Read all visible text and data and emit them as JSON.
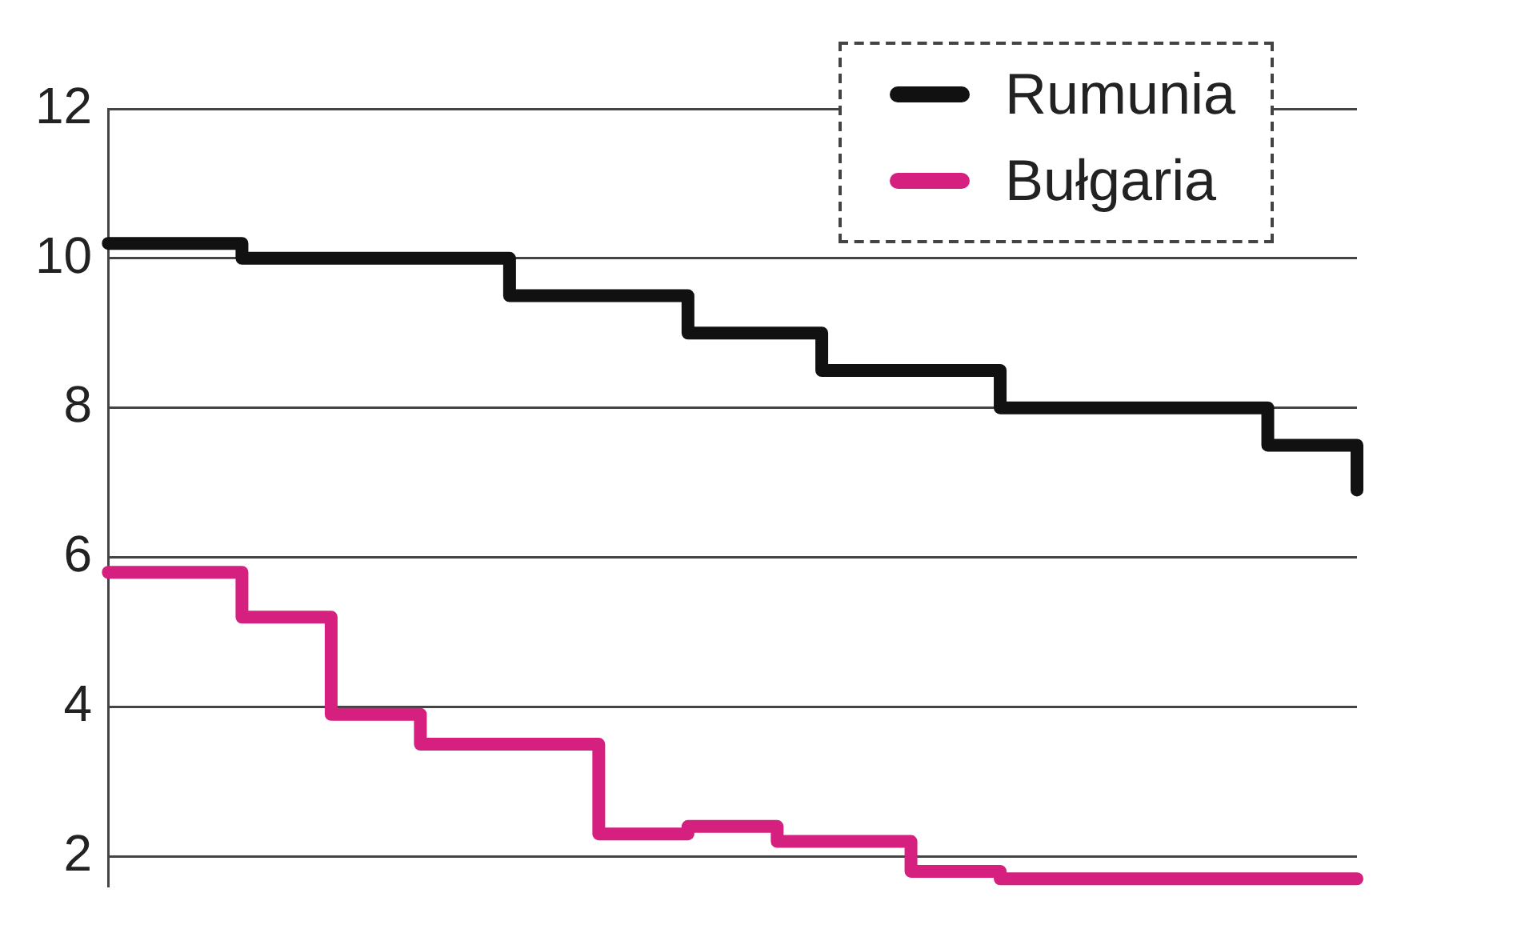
{
  "chart_data": {
    "type": "step",
    "categories": [
      null,
      null,
      null,
      null,
      null,
      null,
      null,
      null,
      null,
      null,
      null,
      null,
      null,
      null,
      null,
      null,
      null,
      null,
      null,
      null,
      null,
      null,
      null,
      null,
      null,
      null,
      null,
      null,
      null
    ],
    "series": [
      {
        "name": "Rumunia",
        "color": "#111111",
        "values": [
          10.2,
          10.2,
          10.2,
          10.0,
          10.0,
          10.0,
          10.0,
          10.0,
          10.0,
          9.5,
          9.5,
          9.5,
          9.5,
          9.0,
          9.0,
          9.0,
          8.5,
          8.5,
          8.5,
          8.5,
          8.0,
          8.0,
          8.0,
          8.0,
          8.0,
          8.0,
          7.5,
          7.5,
          6.9
        ]
      },
      {
        "name": "Bułgaria",
        "color": "#d6207f",
        "values": [
          5.8,
          5.8,
          5.8,
          5.2,
          5.2,
          3.9,
          3.9,
          3.5,
          3.5,
          3.5,
          3.5,
          2.3,
          2.3,
          2.4,
          2.4,
          2.2,
          2.2,
          2.2,
          1.8,
          1.8,
          1.7,
          1.7,
          1.7,
          1.7,
          1.7,
          1.7,
          1.7,
          1.7,
          1.7
        ]
      }
    ],
    "ylim": [
      1.6,
      12
    ],
    "yticks": [
      2,
      4,
      6,
      8,
      10,
      12
    ],
    "grid": "y",
    "legend": "top right",
    "tick_labels": "y"
  }
}
